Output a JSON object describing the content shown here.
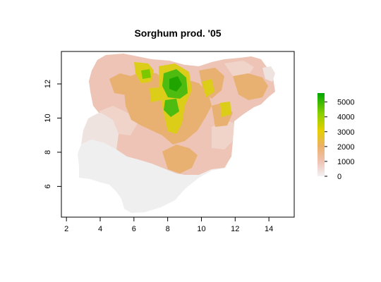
{
  "title": "Sorghum prod. '05",
  "map": {
    "x_ticks": [
      "2",
      "4",
      "6",
      "8",
      "10",
      "12",
      "14"
    ],
    "y_ticks": [
      "6",
      "8",
      "10",
      "12"
    ],
    "x_range": [
      1.7,
      15.5
    ],
    "y_range": [
      4.2,
      13.9
    ],
    "background_region_color": "#f2f2f2"
  },
  "legend": {
    "ticks": [
      "0",
      "1000",
      "2000",
      "3000",
      "4000",
      "5000"
    ],
    "range": [
      0,
      5600
    ],
    "colors": [
      "#f2f2f2",
      "#efc2b3",
      "#ebb16b",
      "#e6cf00",
      "#8bd000",
      "#00a600"
    ]
  }
}
